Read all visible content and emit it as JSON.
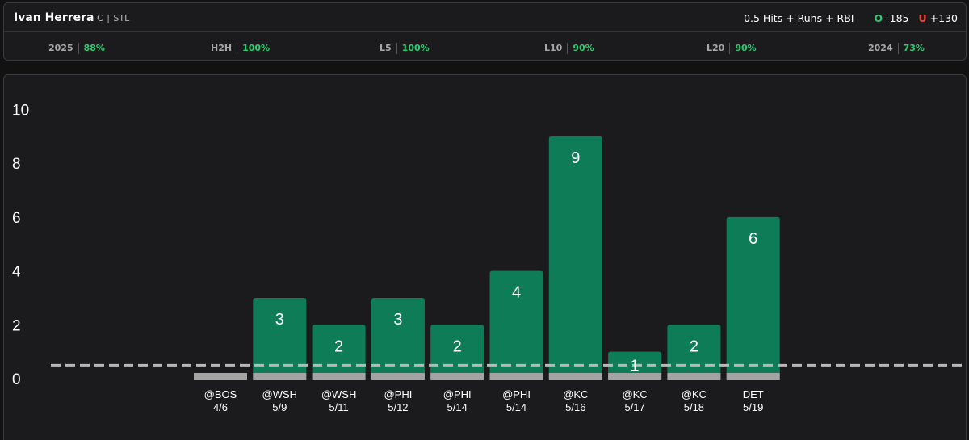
{
  "player": {
    "name": "Ivan Herrera",
    "position": "C",
    "separator": "|",
    "team": "STL"
  },
  "prop": {
    "label": "0.5 Hits + Runs + RBI",
    "over_letter": "O",
    "over_odds": "-185",
    "under_letter": "U",
    "under_odds": "+130"
  },
  "stats": [
    {
      "label": "2025",
      "value": "88%"
    },
    {
      "label": "H2H",
      "value": "100%"
    },
    {
      "label": "L5",
      "value": "100%"
    },
    {
      "label": "L10",
      "value": "90%"
    },
    {
      "label": "L20",
      "value": "90%"
    },
    {
      "label": "2024",
      "value": "73%"
    }
  ],
  "colors": {
    "bar": "#0e7d57",
    "base": "#a3a3a3",
    "positive": "#2ecc71",
    "negative": "#e74c3c",
    "line": "#b8b8b8"
  },
  "chart_data": {
    "type": "bar",
    "categories": [
      "@BOS",
      "@WSH",
      "@WSH",
      "@PHI",
      "@PHI",
      "@PHI",
      "@KC",
      "@KC",
      "@KC",
      "DET"
    ],
    "dates": [
      "4/6",
      "5/9",
      "5/11",
      "5/12",
      "5/14",
      "5/14",
      "5/16",
      "5/17",
      "5/18",
      "5/19"
    ],
    "values": [
      0,
      3,
      2,
      3,
      2,
      4,
      9,
      1,
      2,
      6
    ],
    "data_labels": [
      "",
      "3",
      "2",
      "3",
      "2",
      "4",
      "9",
      "1",
      "2",
      "6"
    ],
    "threshold": 0.5,
    "ylim": [
      0,
      10
    ],
    "yticks": [
      "0",
      "2",
      "4",
      "6",
      "8",
      "10"
    ],
    "xlabel": "",
    "ylabel": "",
    "title": ""
  }
}
